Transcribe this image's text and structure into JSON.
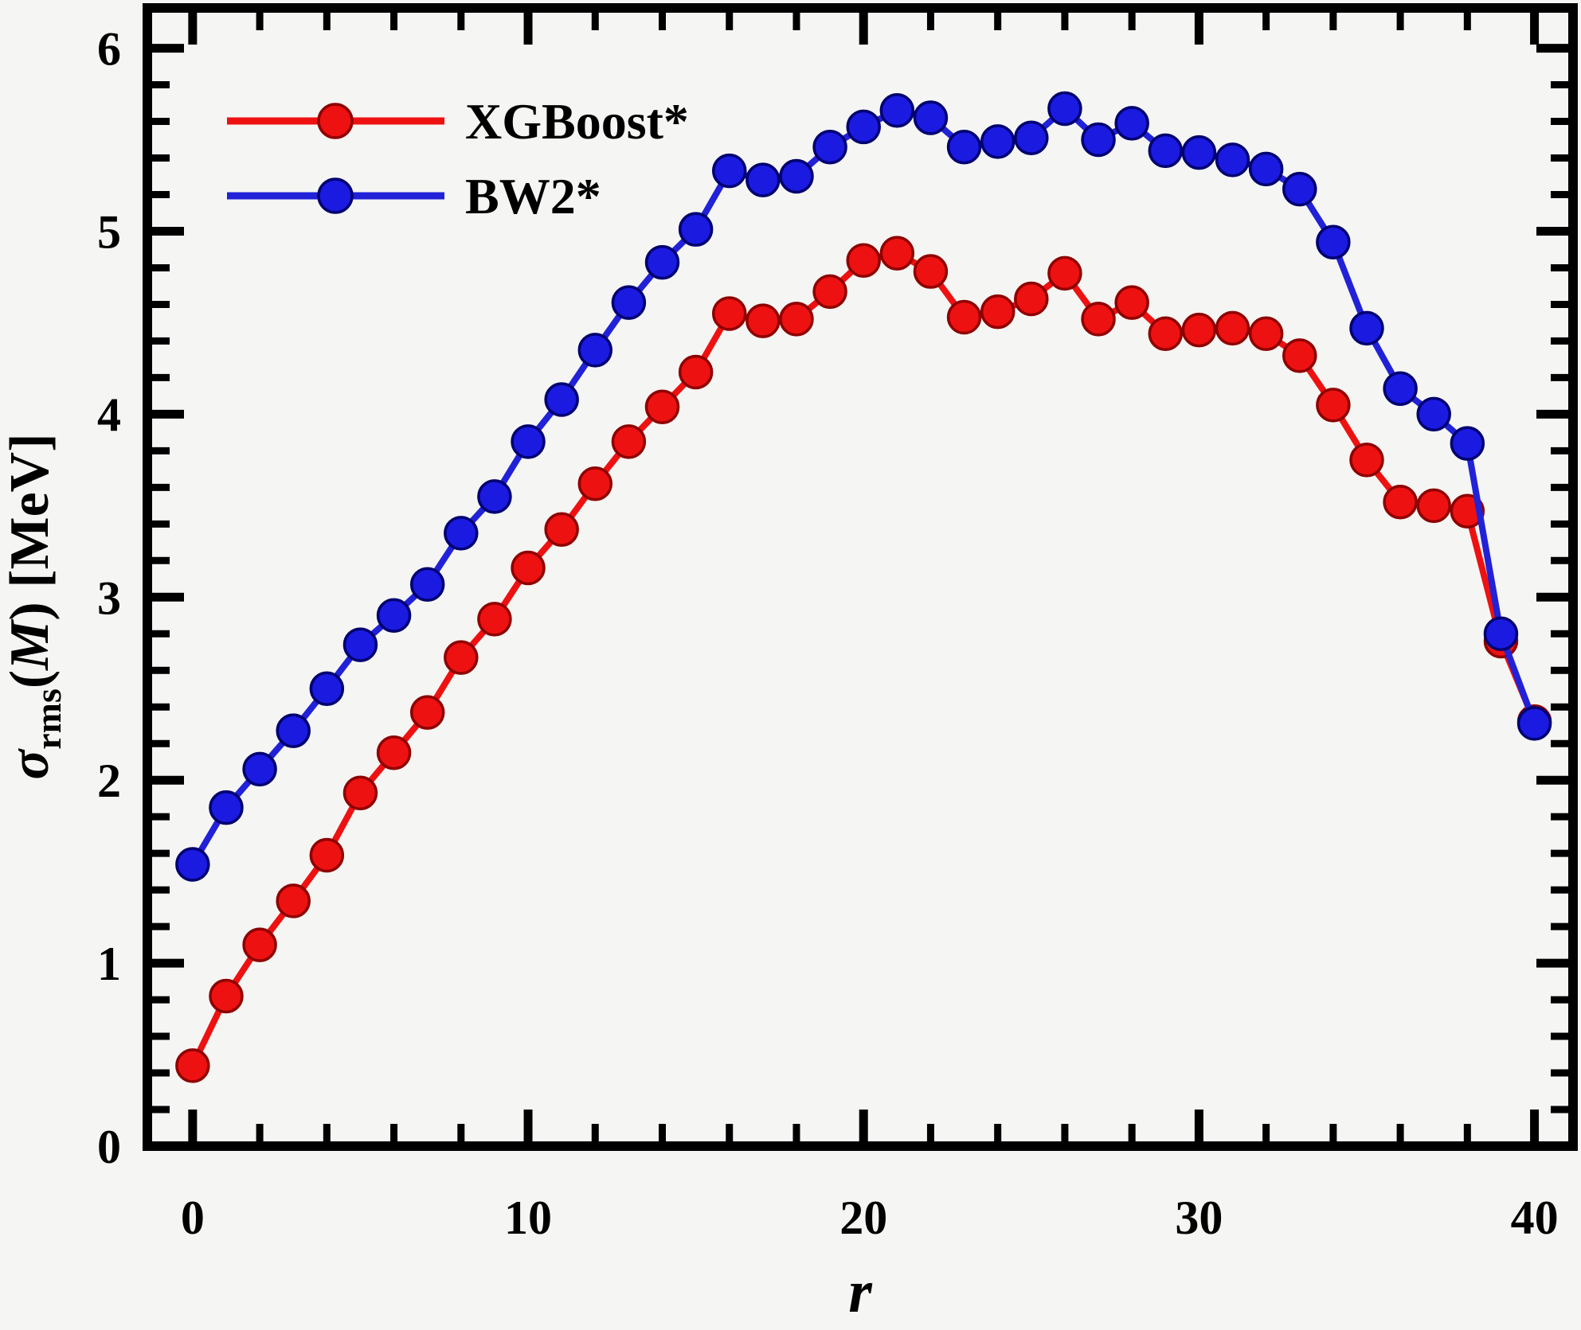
{
  "figure": {
    "background": "#f5f5f3",
    "frame_color": "#000000"
  },
  "legend": {
    "position": "upper-left",
    "items": [
      {
        "label": "XGBoost*",
        "line_color": "#ee1111",
        "marker_fill": "#ee1111",
        "marker_edge": "#8e0000"
      },
      {
        "label": "BW2*",
        "line_color": "#2121d8",
        "marker_fill": "#1a1ae0",
        "marker_edge": "#000070"
      }
    ]
  },
  "axes": {
    "x": {
      "label": "r",
      "tick_labels": [
        "0",
        "10",
        "20",
        "30",
        "40"
      ],
      "tick_values": [
        0,
        10,
        20,
        30,
        40
      ],
      "minor_step": 2,
      "range": [
        -1.35,
        41.15
      ]
    },
    "y": {
      "label_parts": {
        "sigma": "σ",
        "sub": "rms",
        "open": "(",
        "M": "M",
        "close": ") [MeV]"
      },
      "tick_labels": [
        "0",
        "1",
        "2",
        "3",
        "4",
        "5",
        "6"
      ],
      "tick_values": [
        0,
        1,
        2,
        3,
        4,
        5,
        6
      ],
      "minor_step": 0.2,
      "range": [
        0,
        6.22
      ]
    }
  },
  "chart_data": {
    "type": "line",
    "title": "",
    "xlabel": "r",
    "ylabel": "σ_rms(M) [MeV]",
    "xlim": [
      -1.35,
      41.15
    ],
    "ylim": [
      0,
      6.22
    ],
    "grid": false,
    "legend_position": "upper-left",
    "x": [
      0,
      1,
      2,
      3,
      4,
      5,
      6,
      7,
      8,
      9,
      10,
      11,
      12,
      13,
      14,
      15,
      16,
      17,
      18,
      19,
      20,
      21,
      22,
      23,
      24,
      25,
      26,
      27,
      28,
      29,
      30,
      31,
      32,
      33,
      34,
      35,
      36,
      37,
      38,
      39,
      40
    ],
    "series": [
      {
        "name": "XGBoost*",
        "color": "#ee1111",
        "marker": "circle",
        "values": [
          0.44,
          0.82,
          1.1,
          1.34,
          1.59,
          1.93,
          2.15,
          2.37,
          2.67,
          2.88,
          3.16,
          3.37,
          3.62,
          3.85,
          4.04,
          4.23,
          4.55,
          4.51,
          4.52,
          4.67,
          4.84,
          4.88,
          4.78,
          4.53,
          4.56,
          4.63,
          4.77,
          4.52,
          4.61,
          4.44,
          4.46,
          4.47,
          4.44,
          4.32,
          4.05,
          3.75,
          3.52,
          3.5,
          3.47,
          2.76,
          2.32
        ]
      },
      {
        "name": "BW2*",
        "color": "#2121d8",
        "marker": "circle",
        "values": [
          1.54,
          1.85,
          2.06,
          2.27,
          2.5,
          2.74,
          2.9,
          3.07,
          3.35,
          3.55,
          3.85,
          4.08,
          4.35,
          4.61,
          4.83,
          5.01,
          5.33,
          5.28,
          5.3,
          5.46,
          5.57,
          5.66,
          5.62,
          5.46,
          5.49,
          5.51,
          5.67,
          5.5,
          5.59,
          5.44,
          5.43,
          5.39,
          5.34,
          5.23,
          4.94,
          4.47,
          4.14,
          4.0,
          3.84,
          2.8,
          2.31
        ]
      }
    ]
  }
}
